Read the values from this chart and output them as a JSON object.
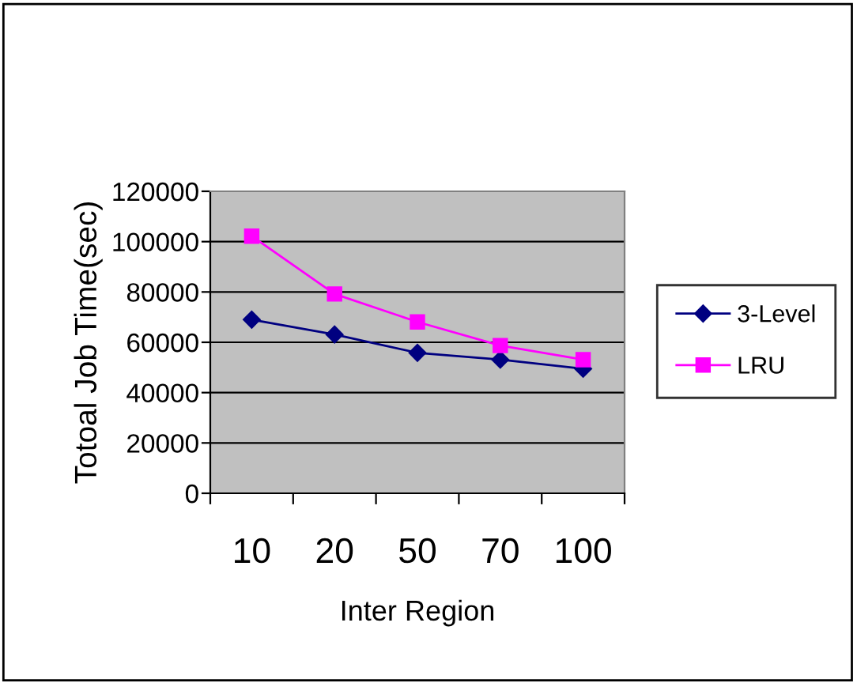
{
  "chart_data": {
    "type": "line",
    "xlabel": "Inter Region",
    "ylabel": "Totoal Job Time(sec)",
    "categories": [
      "10",
      "20",
      "50",
      "70",
      "100"
    ],
    "series": [
      {
        "name": "3-Level",
        "color": "#000080",
        "marker": "diamond",
        "values": [
          69000,
          63100,
          55800,
          53100,
          49500
        ]
      },
      {
        "name": "LRU",
        "color": "#ff00ff",
        "marker": "square",
        "values": [
          102200,
          79200,
          68100,
          58700,
          53100
        ]
      }
    ],
    "ylim": [
      0,
      120000
    ],
    "yticks": [
      0,
      20000,
      40000,
      60000,
      80000,
      100000,
      120000
    ],
    "grid": "y",
    "legend": "right",
    "line_style": "solid"
  }
}
